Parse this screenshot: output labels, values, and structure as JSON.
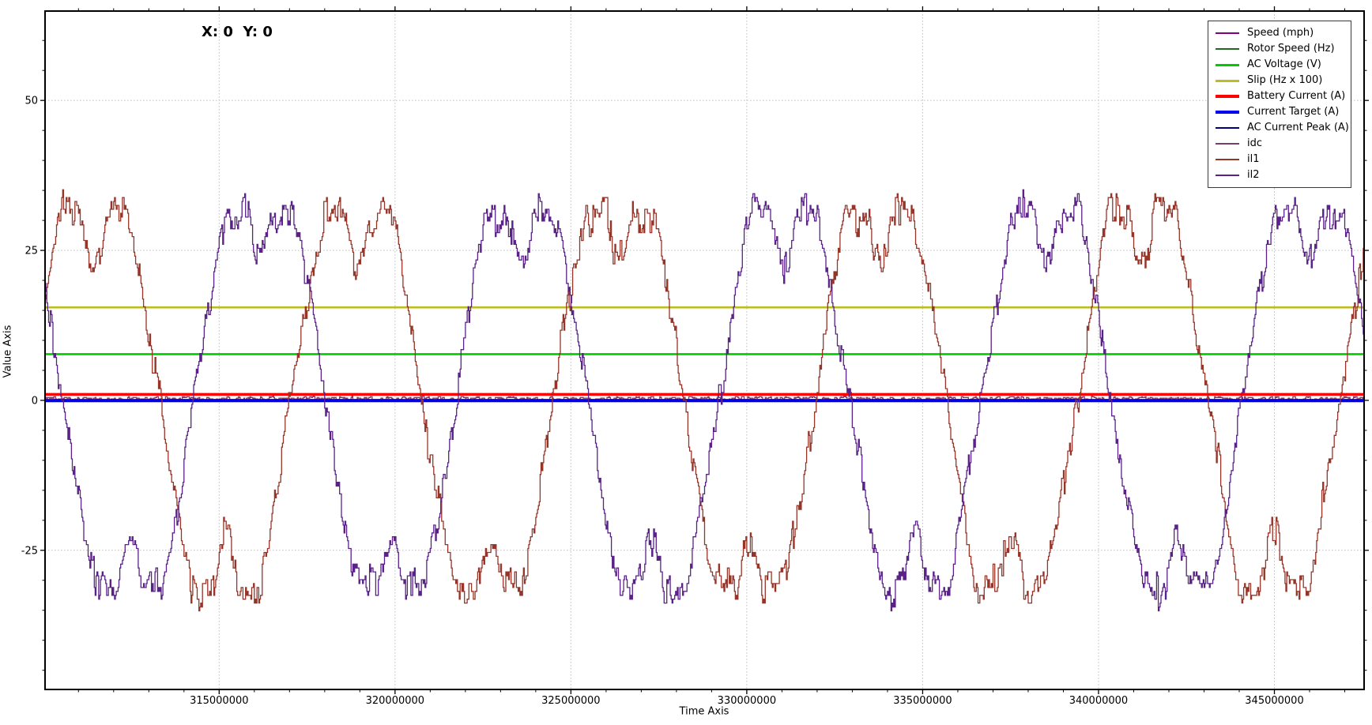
{
  "window": {
    "background": "#ffffff"
  },
  "cursor_readout": "X: 0  Y: 0",
  "chart_data": {
    "type": "line",
    "title": "",
    "xlabel": "Time Axis",
    "ylabel": "Value Axis",
    "cursor_readout": "X: 0  Y: 0",
    "xlim": [
      310050000,
      347550000
    ],
    "ylim": [
      -48.2,
      64.9
    ],
    "grid": "dotted major gridlines both axes",
    "legend_position": "top-right",
    "x_ticks": [
      {
        "v": 315000000,
        "label": "315000000"
      },
      {
        "v": 320000000,
        "label": "320000000"
      },
      {
        "v": 325000000,
        "label": "325000000"
      },
      {
        "v": 330000000,
        "label": "330000000"
      },
      {
        "v": 335000000,
        "label": "335000000"
      },
      {
        "v": 340000000,
        "label": "340000000"
      },
      {
        "v": 345000000,
        "label": "345000000"
      }
    ],
    "x_minor_step": 1000000,
    "y_ticks": [
      {
        "v": -25,
        "label": "-25"
      },
      {
        "v": 0,
        "label": "0"
      },
      {
        "v": 25,
        "label": "25"
      },
      {
        "v": 50,
        "label": "50"
      }
    ],
    "y_minor_step": 5,
    "sample_step": 25000,
    "draw_order": [
      1,
      0,
      3,
      2,
      6,
      7,
      4,
      5,
      8,
      9
    ],
    "series": [
      {
        "name": "Speed (mph)",
        "color": "#800080",
        "width": 1.4,
        "kind": "flat",
        "value": 0
      },
      {
        "name": "Rotor Speed (Hz)",
        "color": "#226622",
        "width": 1.4,
        "kind": "flat",
        "value": 0
      },
      {
        "name": "AC Voltage (V)",
        "color": "#00CC00",
        "width": 2.6,
        "kind": "flat",
        "value": 7.7
      },
      {
        "name": "Slip (Hz x 100)",
        "color": "#BDBD1F",
        "width": 2.6,
        "kind": "flat",
        "value": 15.5
      },
      {
        "name": "Battery Current (A)",
        "color": "#FF0000",
        "width": 3.5,
        "kind": "flat",
        "value": 1.0
      },
      {
        "name": "Current Target (A)",
        "color": "#0000EE",
        "width": 3.5,
        "kind": "flat",
        "value": 0.0
      },
      {
        "name": "AC Current Peak (A)",
        "color": "#000080",
        "width": 1.6,
        "kind": "flat",
        "value": -0.2
      },
      {
        "name": "idc",
        "color": "#7D3C6E",
        "width": 1.3,
        "kind": "noisy_flat",
        "value": 0.3,
        "noise": 0.3,
        "seed": 5
      },
      {
        "name": "il1",
        "color": "#973428",
        "width": 1.3,
        "kind": "wave",
        "amplitude": 31,
        "clip_gain": 1.45,
        "period": 7450000,
        "phase_t0": 317037500,
        "dip": 8,
        "noise": 2.3,
        "seed": 11
      },
      {
        "name": "il2",
        "color": "#5A2288",
        "width": 1.3,
        "kind": "wave",
        "amplitude": 31,
        "clip_gain": 1.45,
        "period": 7450000,
        "phase_t0": 314287500,
        "dip": 8,
        "noise": 2.3,
        "seed": 77
      }
    ]
  }
}
